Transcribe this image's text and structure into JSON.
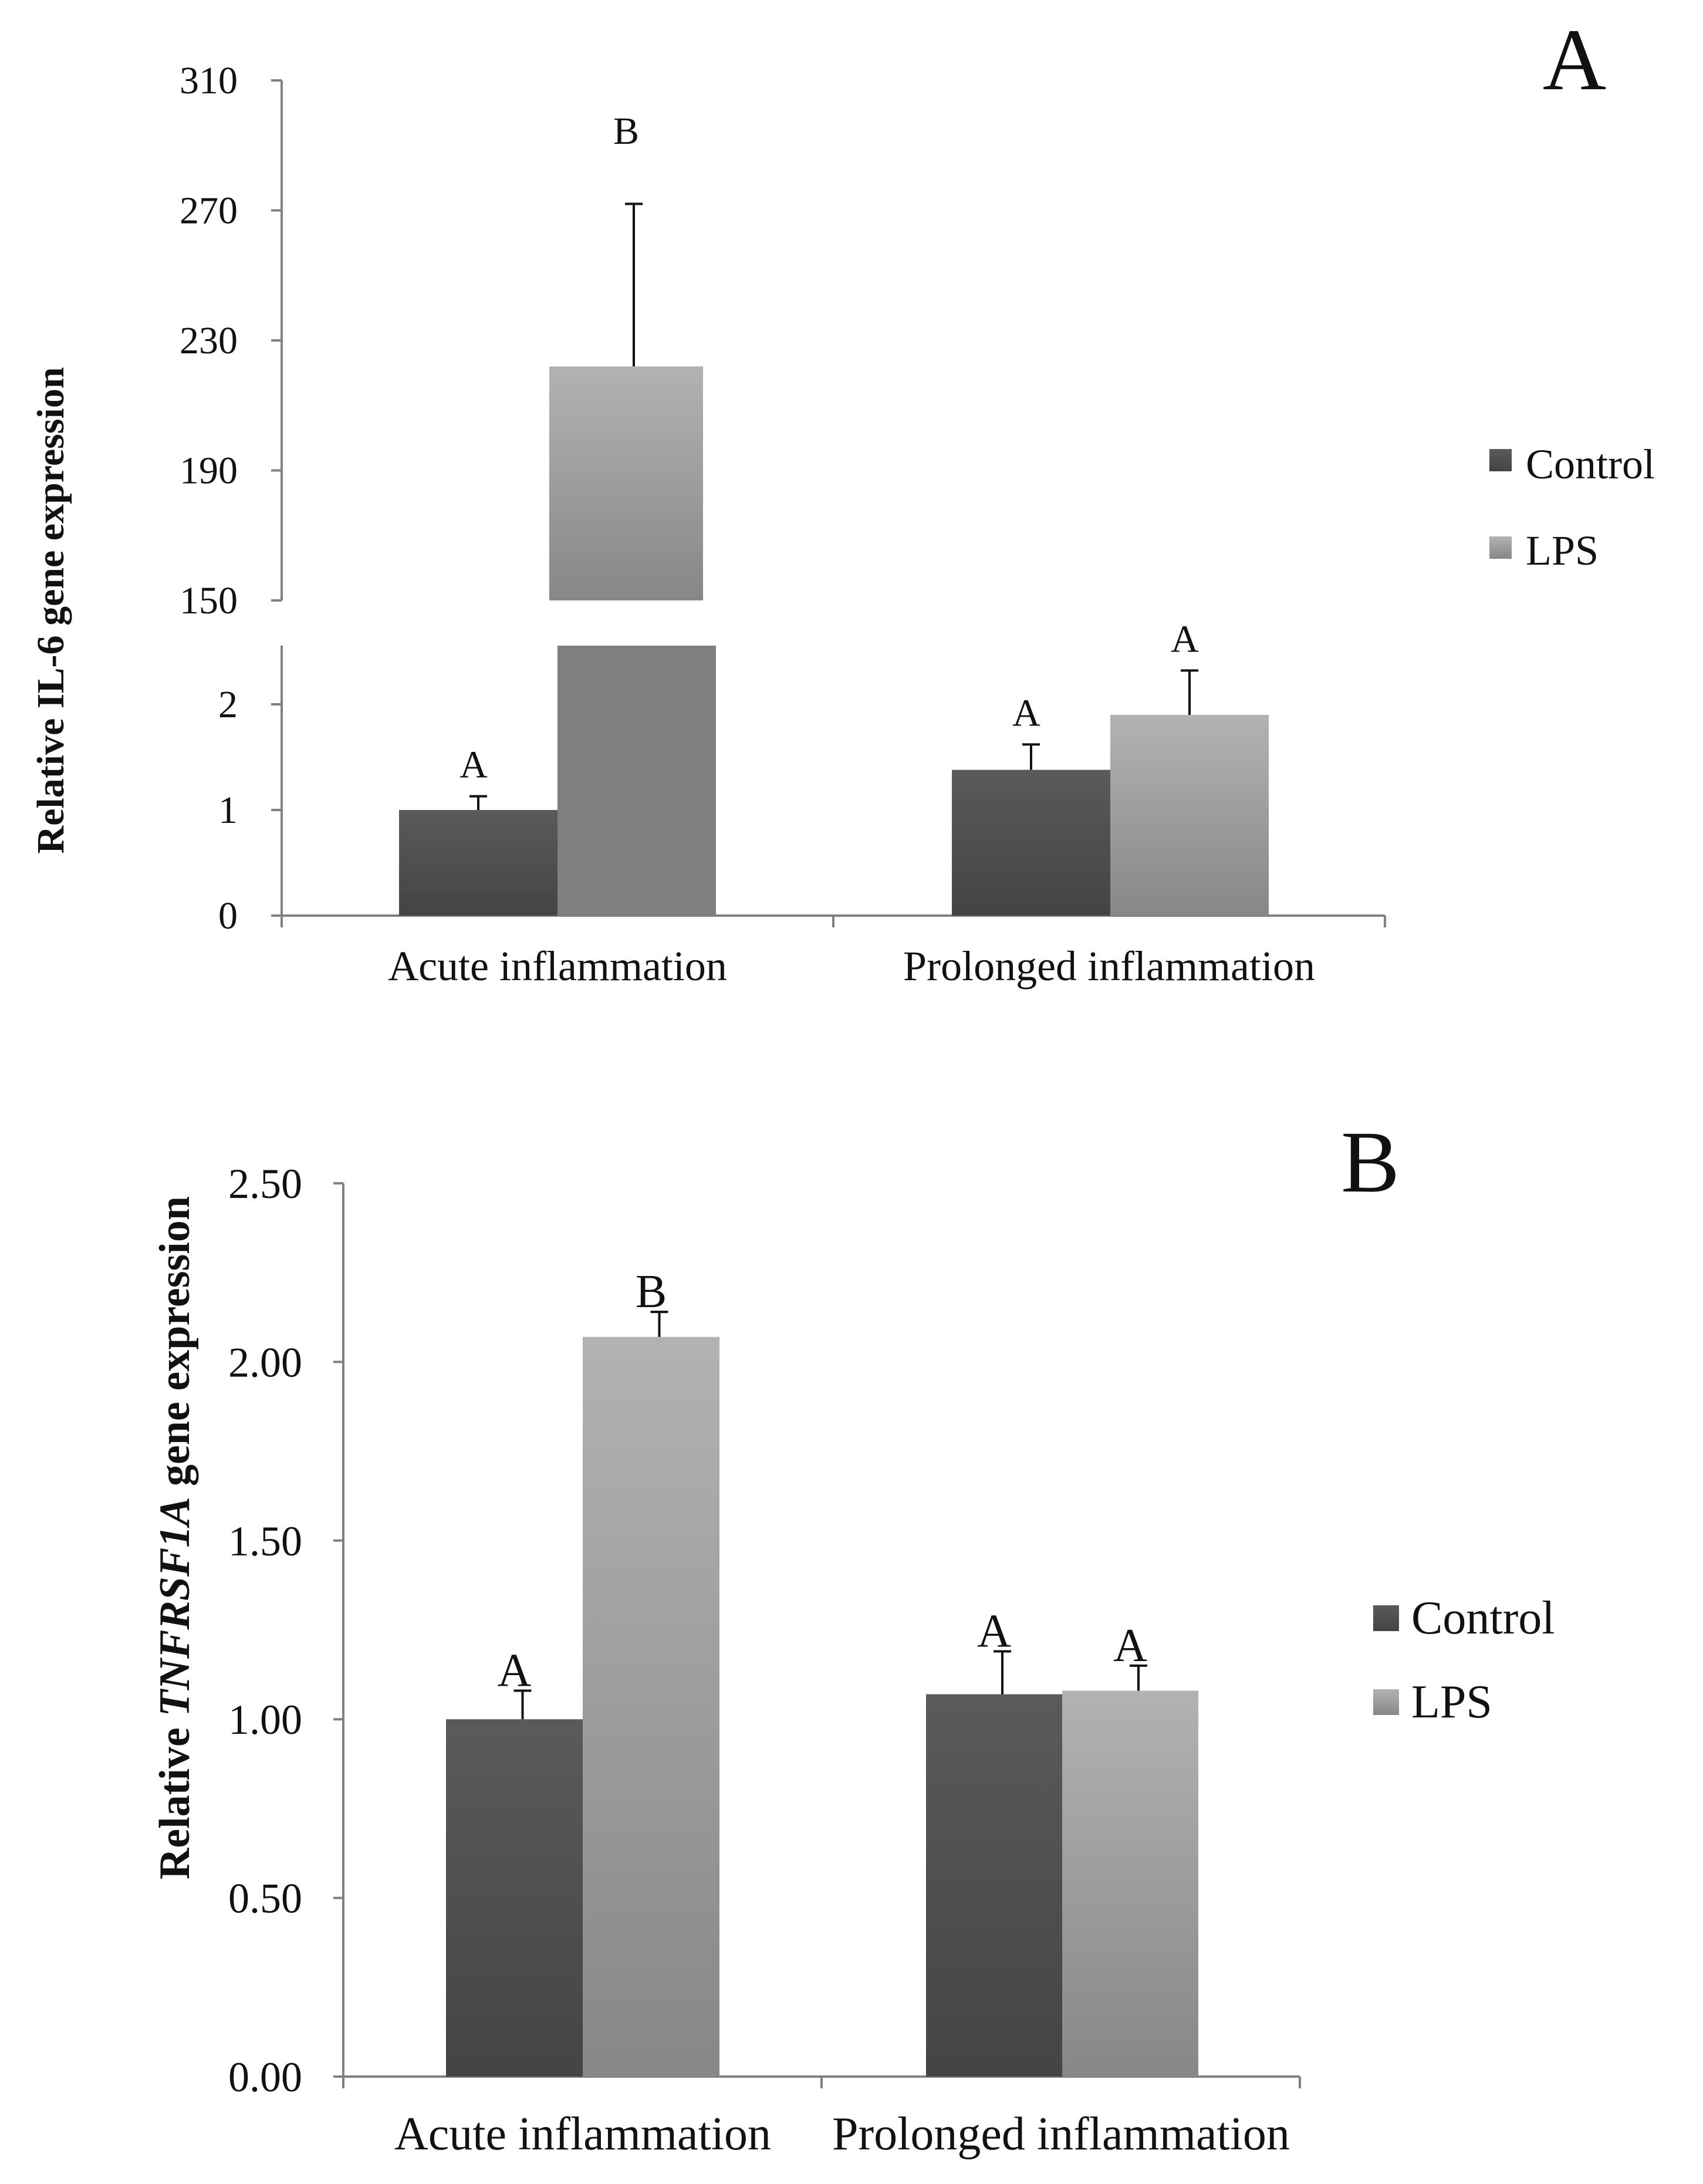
{
  "colors": {
    "control_top": "#5a5a5a",
    "control_bottom": "#444444",
    "lps_top": "#b2b2b2",
    "lps_bottom": "#878787",
    "lps_broken_bottom": "#7f7f7f",
    "axis": "#808080",
    "errorbar": "#111111"
  },
  "chart_data": [
    {
      "id": "panel-a",
      "type": "bar",
      "panel_label": "A",
      "ylabel": "Relative IL-6 gene expression",
      "xlabel": "",
      "categories": [
        "Acute inflammation",
        "Prolonged inflammation"
      ],
      "legend": [
        "Control",
        "LPS"
      ],
      "legend_position": "right",
      "axis_break": true,
      "lower_axis": {
        "ylim": [
          0,
          2.5
        ],
        "ticks": [
          0,
          1,
          2
        ],
        "tick_labels": [
          "0",
          "1",
          "2"
        ]
      },
      "upper_axis": {
        "ylim": [
          150,
          310
        ],
        "ticks": [
          150,
          190,
          230,
          270,
          310
        ],
        "tick_labels": [
          "150",
          "190",
          "230",
          "270",
          "310"
        ]
      },
      "series": [
        {
          "name": "Control",
          "values": [
            1.0,
            1.38
          ],
          "errors": [
            0.13,
            0.24
          ],
          "significance": [
            "A",
            "A"
          ]
        },
        {
          "name": "LPS",
          "values": [
            222,
            1.9
          ],
          "errors": [
            50,
            0.42
          ],
          "significance": [
            "B",
            "A"
          ]
        }
      ]
    },
    {
      "id": "panel-b",
      "type": "bar",
      "panel_label": "B",
      "ylabel_parts": [
        "Relative ",
        "TNFRSF1A",
        " gene expression"
      ],
      "xlabel": "",
      "categories": [
        "Acute inflammation",
        "Prolonged inflammation"
      ],
      "legend": [
        "Control",
        "LPS"
      ],
      "legend_position": "right",
      "ylim": [
        0,
        2.5
      ],
      "ticks": [
        0,
        0.5,
        1,
        1.5,
        2,
        2.5
      ],
      "tick_labels": [
        "0.00",
        "0.50",
        "1.00",
        "1.50",
        "2.00",
        "2.50"
      ],
      "series": [
        {
          "name": "Control",
          "values": [
            1.0,
            1.07
          ],
          "errors": [
            0.08,
            0.12
          ],
          "significance": [
            "A",
            "A"
          ]
        },
        {
          "name": "LPS",
          "values": [
            2.07,
            1.08
          ],
          "errors": [
            0.07,
            0.07
          ],
          "significance": [
            "B",
            "A"
          ]
        }
      ]
    }
  ]
}
